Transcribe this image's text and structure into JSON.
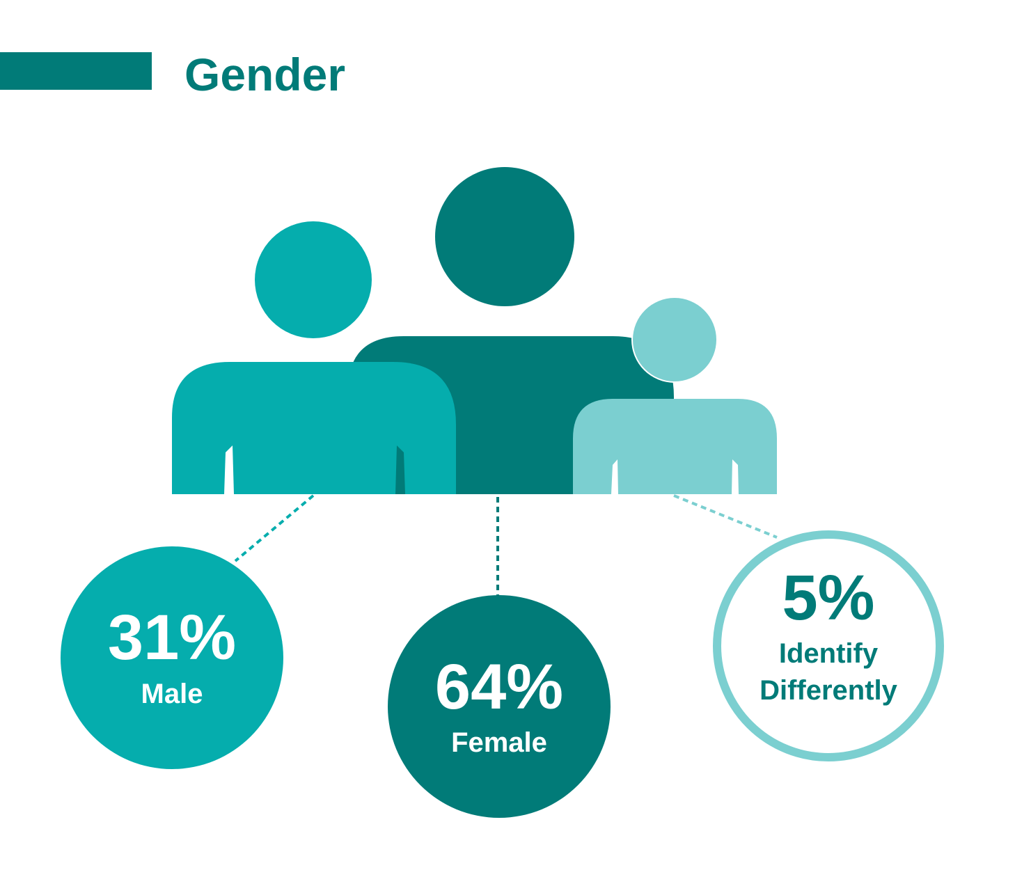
{
  "header": {
    "title": "Gender"
  },
  "groups": [
    {
      "percent": "31%",
      "label": [
        "Male"
      ]
    },
    {
      "percent": "64%",
      "label": [
        "Female"
      ]
    },
    {
      "percent": "5%",
      "label": [
        "Identify",
        "Differently"
      ]
    }
  ]
}
